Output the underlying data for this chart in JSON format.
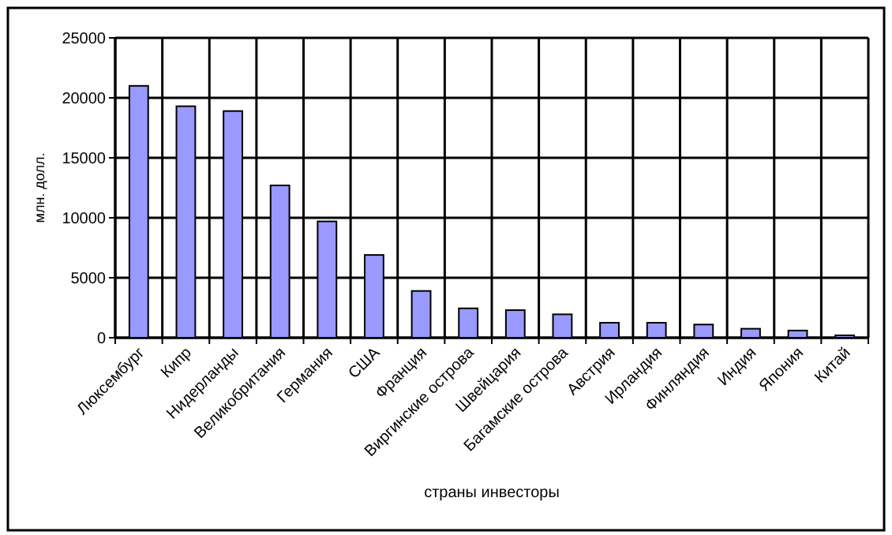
{
  "chart_data": {
    "type": "bar",
    "xlabel": "страны инвесторы",
    "ylabel": "млн. долл.",
    "categories": [
      "Люксембург",
      "Кипр",
      "Нидерланды",
      "Великобритания",
      "Германия",
      "США",
      "Франция",
      "Виргинские острова",
      "Швейцария",
      "Багамские острова",
      "Австрия",
      "Ирландия",
      "Финляндия",
      "Индия",
      "Япония",
      "Китай"
    ],
    "values": [
      21000,
      19300,
      18900,
      12700,
      9700,
      6900,
      3900,
      2450,
      2300,
      1950,
      1250,
      1250,
      1100,
      750,
      600,
      200
    ],
    "color": "#9999ff",
    "ylim": [
      0,
      25000
    ],
    "yticks": [
      0,
      5000,
      10000,
      15000,
      20000,
      25000
    ],
    "grid": true
  }
}
